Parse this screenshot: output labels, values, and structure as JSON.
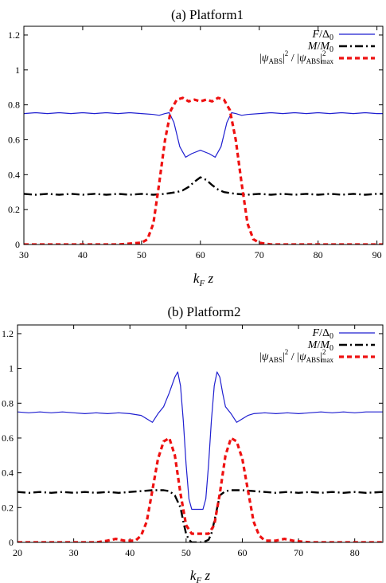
{
  "chart_data": [
    {
      "type": "line",
      "title": "(a) Platform1",
      "xlabel": "k_F z",
      "ylabel": "",
      "xlim": [
        30,
        91
      ],
      "ylim": [
        0,
        1.25
      ],
      "xticks": [
        30,
        40,
        50,
        60,
        70,
        80,
        90
      ],
      "yticks": [
        0,
        0.2,
        0.4,
        0.6,
        0.8,
        1,
        1.2
      ],
      "legend_position": "top-right",
      "series": [
        {
          "name": "F/Δ0",
          "legend_html": "<tspan font-style='italic'>F</tspan>/Δ<tspan font-size='10' dy='3'>0</tspan>",
          "color": "#1f1fd0",
          "style": "solid",
          "x": [
            30,
            32,
            34,
            36,
            38,
            40,
            42,
            44,
            46,
            48,
            50,
            52,
            53,
            54,
            54.7,
            55.5,
            56.5,
            57.5,
            58.5,
            60,
            61.5,
            62.5,
            63.5,
            64.5,
            65.3,
            66,
            67,
            68,
            70,
            72,
            74,
            76,
            78,
            80,
            82,
            84,
            86,
            88,
            90,
            91
          ],
          "y": [
            0.75,
            0.755,
            0.75,
            0.755,
            0.75,
            0.755,
            0.75,
            0.755,
            0.75,
            0.755,
            0.75,
            0.745,
            0.74,
            0.75,
            0.755,
            0.7,
            0.56,
            0.5,
            0.52,
            0.54,
            0.52,
            0.5,
            0.56,
            0.7,
            0.755,
            0.75,
            0.74,
            0.745,
            0.75,
            0.755,
            0.75,
            0.755,
            0.75,
            0.755,
            0.75,
            0.755,
            0.75,
            0.755,
            0.75,
            0.75
          ]
        },
        {
          "name": "M/M0",
          "legend_html": "<tspan font-style='italic'>M</tspan>/<tspan font-style='italic'>M</tspan><tspan font-size='10' dy='3'>0</tspan>",
          "color": "#000000",
          "style": "dashdot",
          "x": [
            30,
            32,
            34,
            36,
            38,
            40,
            42,
            44,
            46,
            48,
            50,
            52,
            54,
            56,
            57,
            58,
            59,
            60,
            61,
            62,
            63,
            64,
            66,
            68,
            70,
            72,
            74,
            76,
            78,
            80,
            82,
            84,
            86,
            88,
            90,
            91
          ],
          "y": [
            0.29,
            0.285,
            0.29,
            0.285,
            0.29,
            0.285,
            0.29,
            0.285,
            0.29,
            0.285,
            0.29,
            0.285,
            0.29,
            0.3,
            0.31,
            0.33,
            0.36,
            0.385,
            0.37,
            0.34,
            0.315,
            0.3,
            0.29,
            0.285,
            0.29,
            0.285,
            0.29,
            0.285,
            0.29,
            0.285,
            0.29,
            0.285,
            0.29,
            0.285,
            0.29,
            0.29
          ]
        },
        {
          "name": "|ψABS|² / |ψABS|²max",
          "legend_html": "|<tspan font-style='italic'>ψ</tspan><tspan font-size='9' dy='3'>ABS</tspan><tspan dy='-3'>|</tspan><tspan font-size='9' dy='-7'>2</tspan><tspan dy='7'> / |</tspan><tspan font-style='italic'>ψ</tspan><tspan font-size='9' dy='3'>ABS</tspan><tspan dy='-3'>|</tspan><tspan font-size='9' dy='-7'>2</tspan><tspan font-size='9' dx='-6' dy='10'>max</tspan>",
          "color": "#ee1111",
          "style": "dashed",
          "x": [
            30,
            40,
            46,
            48,
            49,
            50,
            51,
            52,
            53,
            54,
            55,
            56,
            57,
            58,
            59,
            60,
            61,
            62,
            63,
            64,
            65,
            66,
            67,
            68,
            69,
            70,
            71,
            72,
            80,
            91
          ],
          "y": [
            0,
            0,
            0,
            0.005,
            0.008,
            0.01,
            0.03,
            0.12,
            0.35,
            0.6,
            0.77,
            0.83,
            0.84,
            0.82,
            0.83,
            0.82,
            0.83,
            0.82,
            0.84,
            0.83,
            0.77,
            0.6,
            0.35,
            0.12,
            0.03,
            0.01,
            0.005,
            0,
            0,
            0
          ]
        }
      ]
    },
    {
      "type": "line",
      "title": "(b) Platform2",
      "xlabel": "k_F z",
      "ylabel": "",
      "xlim": [
        20,
        85
      ],
      "ylim": [
        0,
        1.25
      ],
      "xticks": [
        20,
        30,
        40,
        50,
        60,
        70,
        80
      ],
      "yticks": [
        0,
        0.2,
        0.4,
        0.6,
        0.8,
        1,
        1.2
      ],
      "legend_position": "top-right",
      "series": [
        {
          "name": "F/Δ0",
          "legend_html": "<tspan font-style='italic'>F</tspan>/Δ<tspan font-size='10' dy='3'>0</tspan>",
          "color": "#1f1fd0",
          "style": "solid",
          "x": [
            20,
            22,
            24,
            26,
            28,
            30,
            32,
            34,
            36,
            38,
            40,
            42,
            43,
            44,
            45,
            46,
            47,
            48,
            48.5,
            49,
            49.5,
            50,
            50.5,
            51,
            52,
            53,
            53.5,
            54,
            54.5,
            55,
            55.5,
            56,
            56.5,
            57,
            58,
            59,
            60,
            61,
            62,
            64,
            66,
            68,
            70,
            72,
            74,
            76,
            78,
            80,
            82,
            85
          ],
          "y": [
            0.75,
            0.745,
            0.75,
            0.745,
            0.75,
            0.745,
            0.74,
            0.745,
            0.74,
            0.745,
            0.74,
            0.73,
            0.71,
            0.69,
            0.74,
            0.78,
            0.86,
            0.95,
            0.98,
            0.9,
            0.7,
            0.45,
            0.25,
            0.19,
            0.19,
            0.19,
            0.25,
            0.45,
            0.7,
            0.9,
            0.98,
            0.95,
            0.86,
            0.78,
            0.74,
            0.69,
            0.71,
            0.73,
            0.74,
            0.745,
            0.74,
            0.745,
            0.74,
            0.745,
            0.75,
            0.745,
            0.75,
            0.745,
            0.75,
            0.75
          ]
        },
        {
          "name": "M/M0",
          "legend_html": "<tspan font-style='italic'>M</tspan>/<tspan font-style='italic'>M</tspan><tspan font-size='10' dy='3'>0</tspan>",
          "color": "#000000",
          "style": "dashdot",
          "x": [
            20,
            22,
            24,
            26,
            28,
            30,
            32,
            34,
            36,
            38,
            40,
            42,
            44,
            46,
            47,
            48,
            49,
            49.5,
            50,
            50.5,
            51,
            52,
            53,
            54,
            54.5,
            55,
            56,
            57,
            58,
            60,
            62,
            64,
            66,
            68,
            70,
            72,
            74,
            76,
            78,
            80,
            82,
            85
          ],
          "y": [
            0.29,
            0.285,
            0.29,
            0.285,
            0.29,
            0.285,
            0.29,
            0.285,
            0.29,
            0.285,
            0.29,
            0.295,
            0.3,
            0.3,
            0.295,
            0.27,
            0.2,
            0.12,
            0.05,
            0.015,
            0,
            0,
            0,
            0.015,
            0.05,
            0.12,
            0.27,
            0.295,
            0.3,
            0.3,
            0.295,
            0.29,
            0.285,
            0.29,
            0.285,
            0.29,
            0.285,
            0.29,
            0.285,
            0.29,
            0.285,
            0.29
          ]
        },
        {
          "name": "|ψABS|² / |ψABS|²max",
          "legend_html": "|<tspan font-style='italic'>ψ</tspan><tspan font-size='9' dy='3'>ABS</tspan><tspan dy='-3'>|</tspan><tspan font-size='9' dy='-7'>2</tspan><tspan dy='7'> / |</tspan><tspan font-style='italic'>ψ</tspan><tspan font-size='9' dy='3'>ABS</tspan><tspan dy='-3'>|</tspan><tspan font-size='9' dy='-7'>2</tspan><tspan font-size='9' dx='-6' dy='10'>max</tspan>",
          "color": "#ee1111",
          "style": "dashed",
          "x": [
            20,
            30,
            34,
            36,
            37.5,
            39,
            41,
            42,
            43,
            44,
            45,
            46,
            47,
            48,
            49,
            50,
            51,
            52,
            53,
            54,
            55,
            56,
            57,
            58,
            59,
            60,
            61,
            62,
            63,
            64,
            66,
            67.5,
            69,
            72,
            85
          ],
          "y": [
            0,
            0,
            0,
            0.01,
            0.02,
            0.01,
            0.01,
            0.04,
            0.12,
            0.3,
            0.48,
            0.58,
            0.6,
            0.5,
            0.28,
            0.1,
            0.05,
            0.05,
            0.05,
            0.05,
            0.1,
            0.28,
            0.5,
            0.6,
            0.58,
            0.48,
            0.3,
            0.12,
            0.04,
            0.01,
            0.01,
            0.02,
            0.01,
            0,
            0
          ]
        }
      ]
    }
  ]
}
